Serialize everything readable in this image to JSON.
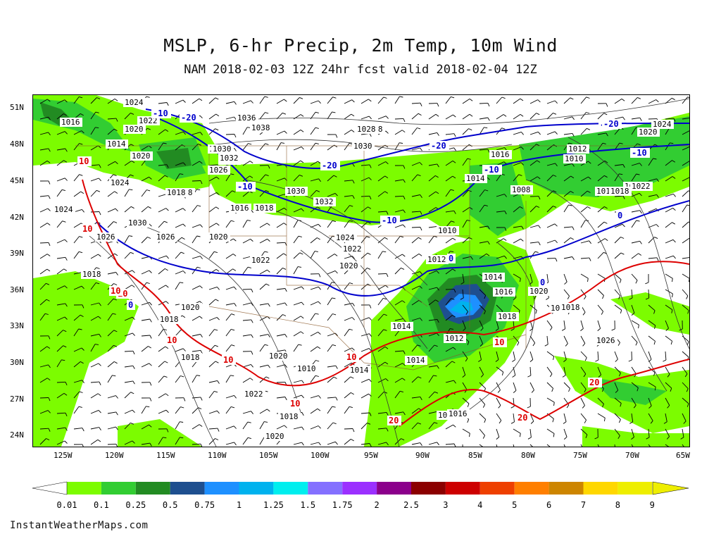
{
  "header": {
    "title": "MSLP, 6-hr Precip, 2m Temp, 10m Wind",
    "subtitle": "NAM 2018-02-03 12Z 24hr fcst valid 2018-02-04 12Z"
  },
  "axes": {
    "lat_labels": [
      "51N",
      "48N",
      "45N",
      "42N",
      "39N",
      "36N",
      "33N",
      "30N",
      "27N",
      "24N"
    ],
    "lon_labels": [
      "125W",
      "120W",
      "115W",
      "110W",
      "105W",
      "100W",
      "95W",
      "90W",
      "85W",
      "80W",
      "75W",
      "70W",
      "65W"
    ]
  },
  "colorbar": {
    "labels": [
      "0.01",
      "0.1",
      "0.25",
      "0.5",
      "0.75",
      "1",
      "1.25",
      "1.5",
      "1.75",
      "2",
      "2.5",
      "3",
      "4",
      "5",
      "6",
      "7",
      "8",
      "9"
    ],
    "colors": [
      "#7cfc00",
      "#32cd32",
      "#228b22",
      "#1e4f8f",
      "#1e90ff",
      "#00b2ee",
      "#00eeee",
      "#8470ff",
      "#9b30ff",
      "#8b008b",
      "#8b0000",
      "#cd0000",
      "#ee4000",
      "#ff7f00",
      "#cd8500",
      "#ffd700",
      "#eeee00"
    ]
  },
  "isobar_labels": [
    {
      "text": "1016"
    },
    {
      "text": "1024"
    },
    {
      "text": "1022"
    },
    {
      "text": "1020"
    },
    {
      "text": "1014"
    },
    {
      "text": "1036"
    },
    {
      "text": "1038"
    },
    {
      "text": "1028"
    },
    {
      "text": "1030"
    },
    {
      "text": "1022"
    },
    {
      "text": "1020"
    },
    {
      "text": "1018"
    },
    {
      "text": "1024"
    },
    {
      "text": "1020"
    },
    {
      "text": "1030"
    },
    {
      "text": "1032"
    },
    {
      "text": "1026"
    },
    {
      "text": "1018"
    },
    {
      "text": "1030"
    },
    {
      "text": "1032"
    },
    {
      "text": "1016"
    },
    {
      "text": "1018"
    },
    {
      "text": "1016"
    },
    {
      "text": "1012"
    },
    {
      "text": "1010"
    },
    {
      "text": "1014"
    },
    {
      "text": "1008"
    },
    {
      "text": "1018"
    },
    {
      "text": "1022"
    },
    {
      "text": "1024"
    },
    {
      "text": "1030"
    },
    {
      "text": "1026"
    },
    {
      "text": "1026"
    },
    {
      "text": "1024"
    },
    {
      "text": "1022"
    },
    {
      "text": "1020"
    },
    {
      "text": "1020"
    },
    {
      "text": "1022"
    },
    {
      "text": "1018"
    },
    {
      "text": "1010"
    },
    {
      "text": "1012"
    },
    {
      "text": "1014"
    },
    {
      "text": "1016"
    },
    {
      "text": "1020"
    },
    {
      "text": "1014"
    },
    {
      "text": "1012"
    },
    {
      "text": "1018"
    },
    {
      "text": "1022"
    },
    {
      "text": "1020"
    },
    {
      "text": "1018"
    },
    {
      "text": "1018"
    },
    {
      "text": "1020"
    },
    {
      "text": "1014"
    },
    {
      "text": "1014"
    },
    {
      "text": "1016"
    },
    {
      "text": "1026"
    },
    {
      "text": "1022"
    },
    {
      "text": "1018"
    },
    {
      "text": "1020"
    },
    {
      "text": "1016"
    },
    {
      "text": "1018"
    },
    {
      "text": "1020"
    },
    {
      "text": "1010"
    },
    {
      "text": "1018"
    },
    {
      "text": "1020"
    },
    {
      "text": "1018"
    },
    {
      "text": "1022"
    },
    {
      "text": "1024"
    },
    {
      "text": "1028"
    }
  ],
  "temp_labels": [
    {
      "text": "-10",
      "color": "#0000cc"
    },
    {
      "text": "-20",
      "color": "#0000cc"
    },
    {
      "text": "-20",
      "color": "#0000cc"
    },
    {
      "text": "-10",
      "color": "#0000cc"
    },
    {
      "text": "-20",
      "color": "#0000cc"
    },
    {
      "text": "-10",
      "color": "#0000cc"
    },
    {
      "text": "-20",
      "color": "#0000cc"
    },
    {
      "text": "-10",
      "color": "#0000cc"
    },
    {
      "text": "-10",
      "color": "#0000cc"
    },
    {
      "text": "-20",
      "color": "#0000cc"
    },
    {
      "text": "0",
      "color": "#0000cc"
    },
    {
      "text": "0",
      "color": "#0000cc"
    },
    {
      "text": "0",
      "color": "#0000cc"
    },
    {
      "text": "0",
      "color": "#0000cc"
    },
    {
      "text": "10",
      "color": "#dd0000"
    },
    {
      "text": "10",
      "color": "#dd0000"
    },
    {
      "text": "10",
      "color": "#dd0000"
    },
    {
      "text": "10",
      "color": "#dd0000"
    },
    {
      "text": "10",
      "color": "#dd0000"
    },
    {
      "text": "10",
      "color": "#dd0000"
    },
    {
      "text": "10",
      "color": "#dd0000"
    },
    {
      "text": "10",
      "color": "#dd0000"
    },
    {
      "text": "20",
      "color": "#dd0000"
    },
    {
      "text": "20",
      "color": "#dd0000"
    },
    {
      "text": "20",
      "color": "#dd0000"
    },
    {
      "text": "10",
      "color": "#dd0000"
    }
  ],
  "credit": "InstantWeatherMaps.com"
}
